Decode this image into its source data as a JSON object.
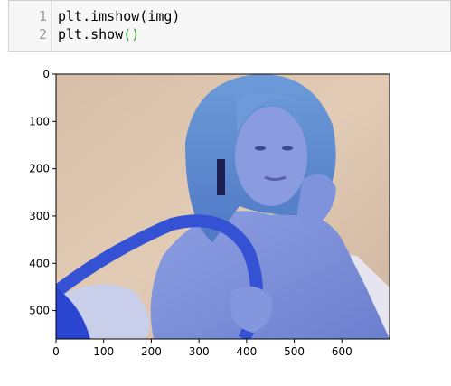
{
  "code_cell": {
    "line_numbers": [
      "1",
      "2"
    ],
    "lines": [
      {
        "text": "plt.imshow(img)"
      },
      {
        "prefix": "plt.show",
        "parens": "()"
      }
    ],
    "colors": {
      "background": "#f7f7f7",
      "paren": "#2a9d2a"
    }
  },
  "chart_data": {
    "type": "image",
    "image_subject": "photo of a blonde woman holding a tennis racket bag, displayed with swapped color channels (blue-tinted)",
    "x_ticks": [
      "0",
      "100",
      "200",
      "300",
      "400",
      "500",
      "600"
    ],
    "y_ticks": [
      "0",
      "100",
      "200",
      "300",
      "400",
      "500"
    ],
    "x_tick_values": [
      0,
      100,
      200,
      300,
      400,
      500,
      600
    ],
    "y_tick_values": [
      0,
      100,
      200,
      300,
      400,
      500
    ],
    "xlim": [
      0,
      700
    ],
    "ylim": [
      560,
      0
    ],
    "grid": false,
    "colors": {
      "background": "#d9bfa6",
      "skin": "#7b8fd6",
      "hair": "#7ba4dc",
      "bag": "#2f4fd2"
    }
  }
}
